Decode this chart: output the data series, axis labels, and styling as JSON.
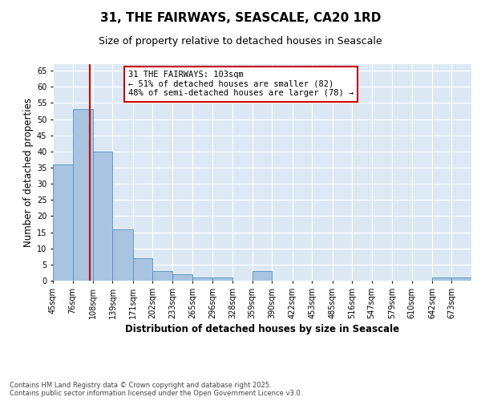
{
  "title": "31, THE FAIRWAYS, SEASCALE, CA20 1RD",
  "subtitle": "Size of property relative to detached houses in Seascale",
  "xlabel": "Distribution of detached houses by size in Seascale",
  "ylabel": "Number of detached properties",
  "bin_labels": [
    "45sqm",
    "76sqm",
    "108sqm",
    "139sqm",
    "171sqm",
    "202sqm",
    "233sqm",
    "265sqm",
    "296sqm",
    "328sqm",
    "359sqm",
    "390sqm",
    "422sqm",
    "453sqm",
    "485sqm",
    "516sqm",
    "547sqm",
    "579sqm",
    "610sqm",
    "642sqm",
    "673sqm"
  ],
  "bin_edges": [
    45,
    76,
    108,
    139,
    171,
    202,
    233,
    265,
    296,
    328,
    359,
    390,
    422,
    453,
    485,
    516,
    547,
    579,
    610,
    642,
    673,
    704
  ],
  "bar_values": [
    36,
    53,
    40,
    16,
    7,
    3,
    2,
    1,
    1,
    0,
    3,
    0,
    0,
    0,
    0,
    0,
    0,
    0,
    0,
    1,
    1
  ],
  "bar_color": "#a8c4e0",
  "bar_edge_color": "#5590c0",
  "red_line_x": 103,
  "annotation_text": "31 THE FAIRWAYS: 103sqm\n← 51% of detached houses are smaller (82)\n48% of semi-detached houses are larger (78) →",
  "annotation_box_color": "#ffffff",
  "annotation_box_edge_color": "#cc0000",
  "ylim": [
    0,
    67
  ],
  "yticks": [
    0,
    5,
    10,
    15,
    20,
    25,
    30,
    35,
    40,
    45,
    50,
    55,
    60,
    65
  ],
  "background_color": "#dce9f5",
  "footer_line1": "Contains HM Land Registry data © Crown copyright and database right 2025.",
  "footer_line2": "Contains public sector information licensed under the Open Government Licence v3.0.",
  "title_fontsize": 11,
  "subtitle_fontsize": 9,
  "axis_label_fontsize": 8.5,
  "tick_fontsize": 7,
  "annotation_fontsize": 7.5,
  "footer_fontsize": 6
}
